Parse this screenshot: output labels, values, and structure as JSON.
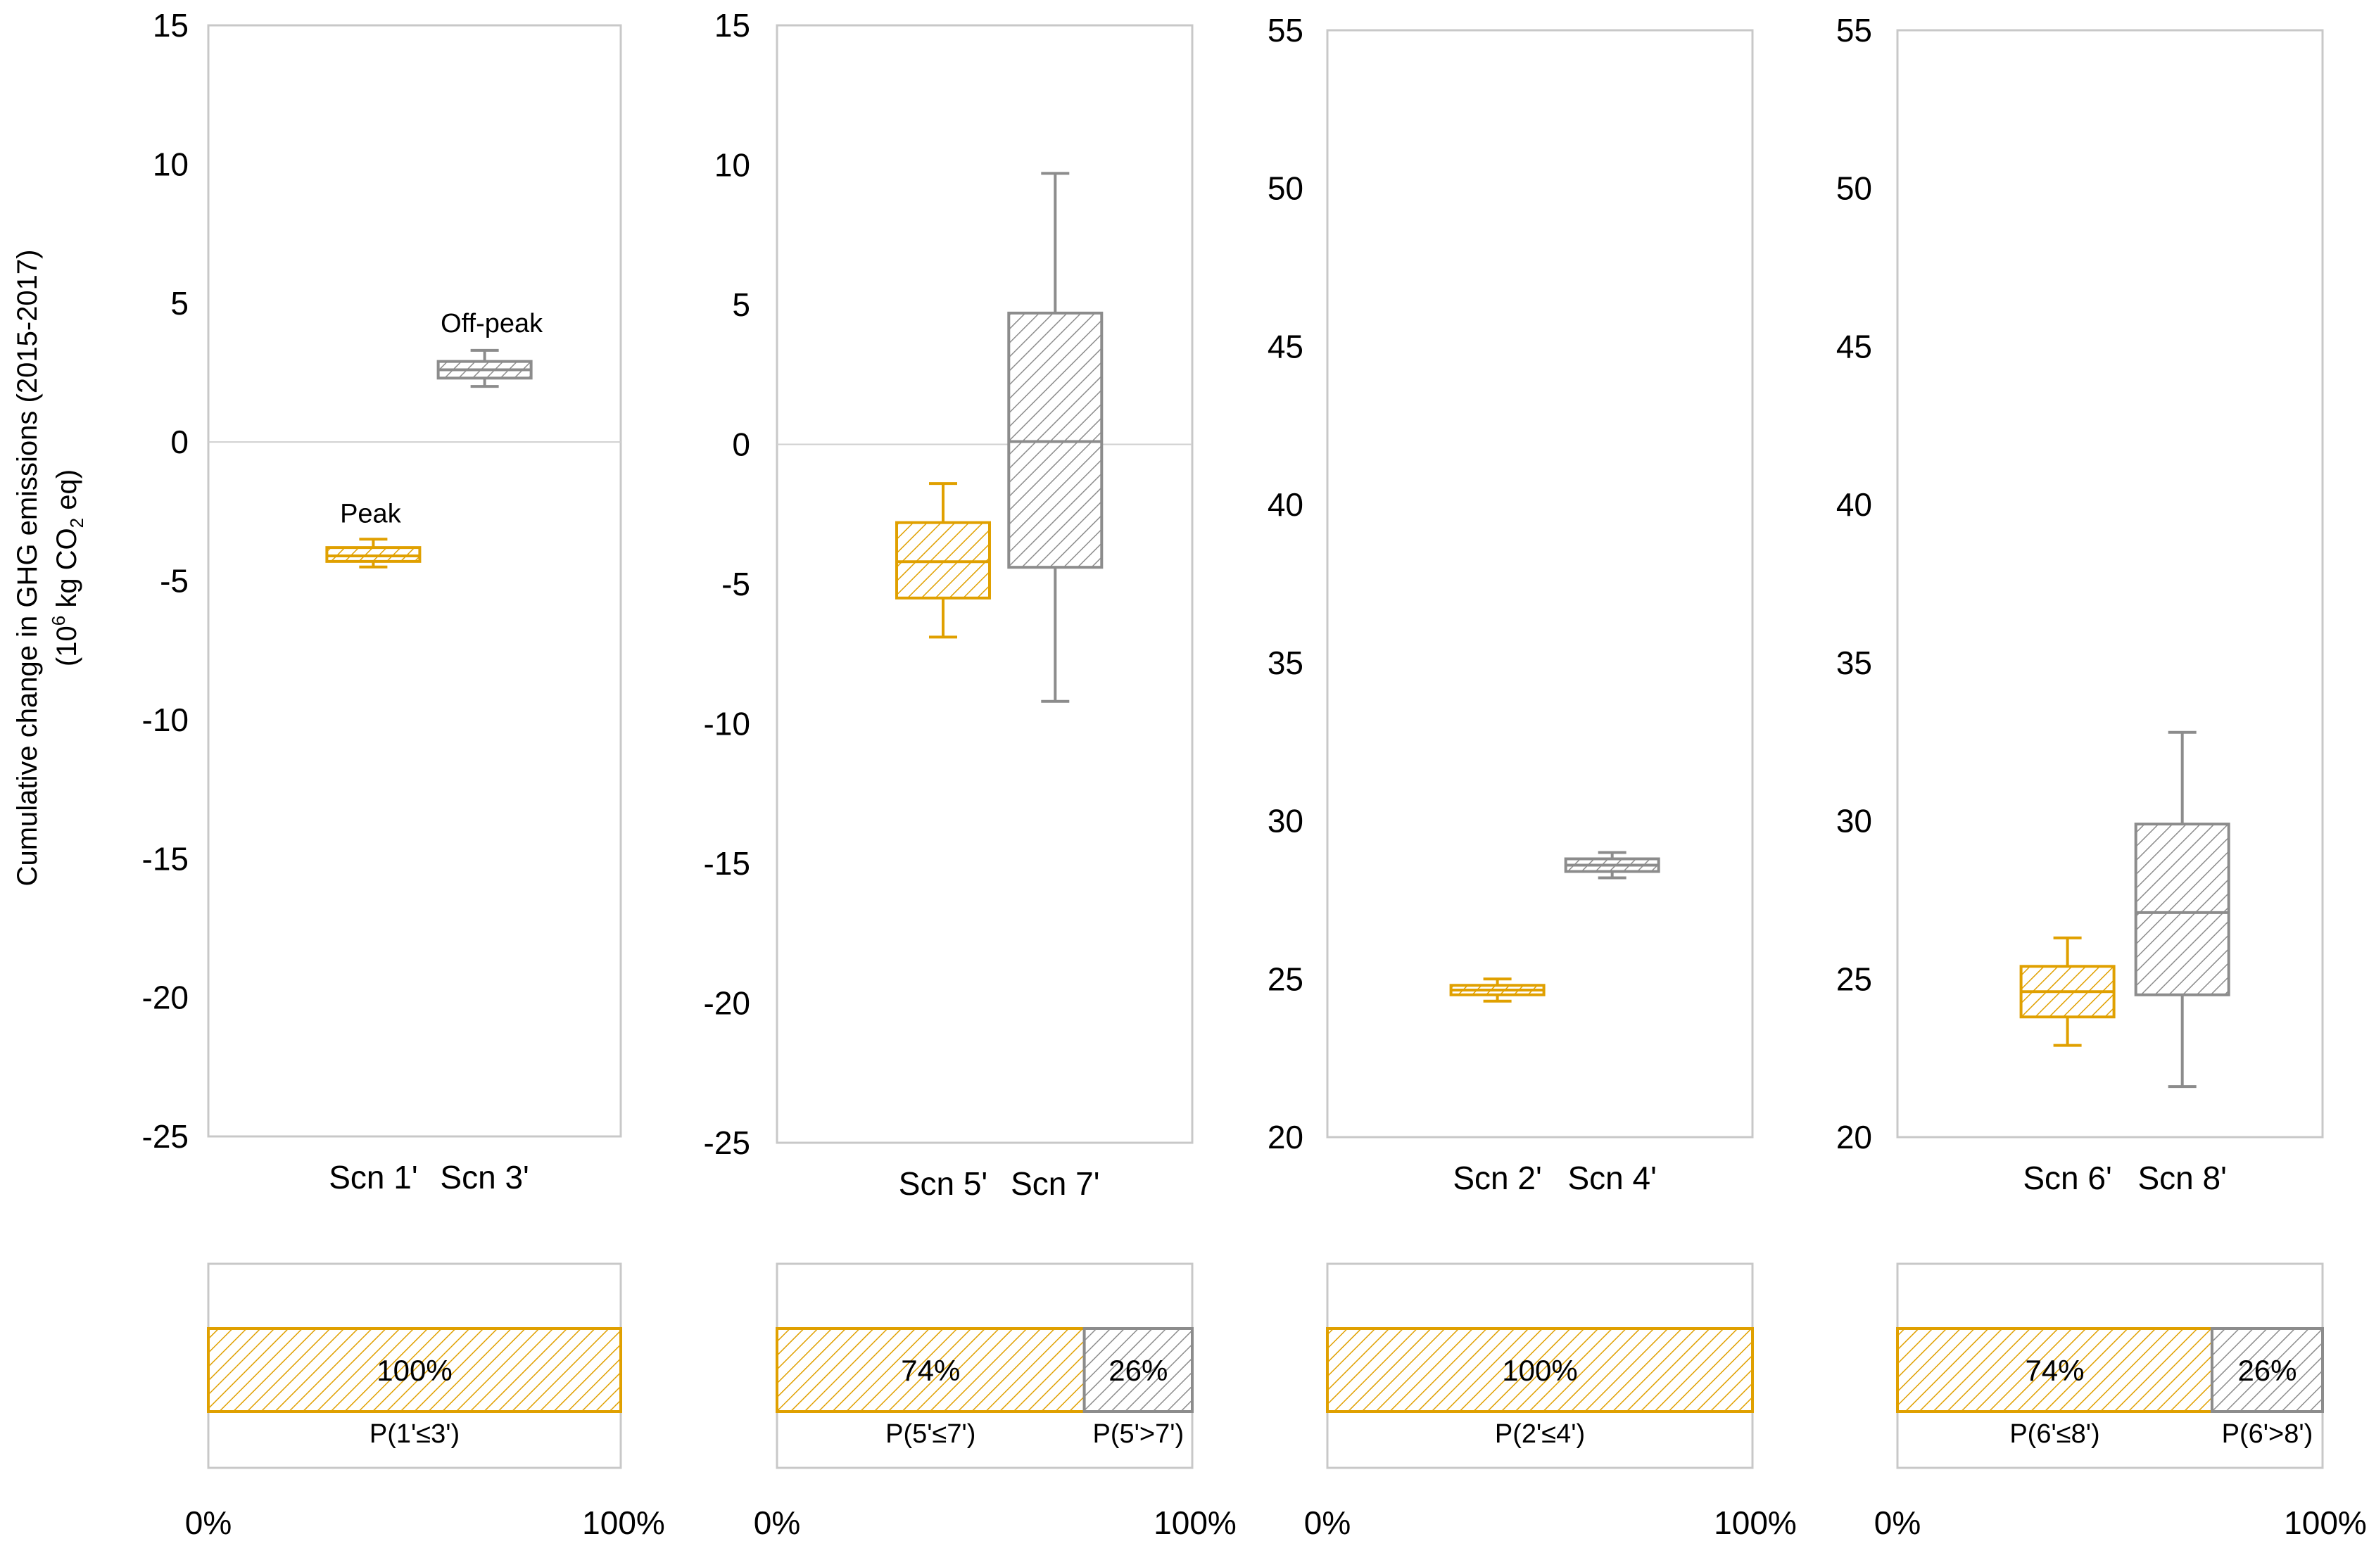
{
  "colors": {
    "peak": "#E0A000",
    "off_peak": "#8C8C8C",
    "frame": "#C8C8C8",
    "zero_line": "#D0D0D0"
  },
  "y_axis_label": {
    "line1": "Cumulative change in GHG emissions (2015-2017)",
    "line2_prefix": "(10",
    "line2_exp": "6",
    "line2_mid": " kg CO",
    "line2_sub": "2",
    "line2_suffix": " eq)"
  },
  "x_axis_ticks": [
    "0%",
    "100%"
  ],
  "chart_data": [
    {
      "type": "box",
      "ylim": [
        -25,
        15
      ],
      "yticks": [
        "15",
        "10",
        "5",
        "0",
        "-5",
        "-10",
        "-15",
        "-20",
        "-25"
      ],
      "zero_line": true,
      "categories": [
        "Scn 1'",
        "Scn 3'"
      ],
      "annotations": [
        "Peak",
        "Off-peak"
      ],
      "boxes": [
        {
          "name": "Scn 1'",
          "series": "peak",
          "whisker_low": -4.5,
          "q1": -4.3,
          "median": -4.1,
          "q3": -3.8,
          "whisker_high": -3.5
        },
        {
          "name": "Scn 3'",
          "series": "off_peak",
          "whisker_low": 2.0,
          "q1": 2.3,
          "median": 2.6,
          "q3": 2.9,
          "whisker_high": 3.3
        }
      ],
      "probability_bar": {
        "segments": [
          {
            "series": "peak",
            "value": 100,
            "label": "100%",
            "caption": "P(1'≤3')"
          }
        ]
      }
    },
    {
      "type": "box",
      "ylim": [
        -25,
        15
      ],
      "yticks": [
        "15",
        "10",
        "5",
        "0",
        "-5",
        "-10",
        "-15",
        "-20",
        "-25"
      ],
      "zero_line": true,
      "categories": [
        "Scn 5'",
        "Scn 7'"
      ],
      "annotations": [],
      "boxes": [
        {
          "name": "Scn 5'",
          "series": "peak",
          "whisker_low": -6.9,
          "q1": -5.5,
          "median": -4.2,
          "q3": -2.8,
          "whisker_high": -1.4
        },
        {
          "name": "Scn 7'",
          "series": "off_peak",
          "whisker_low": -9.2,
          "q1": -4.4,
          "median": 0.1,
          "q3": 4.7,
          "whisker_high": 9.7
        }
      ],
      "probability_bar": {
        "segments": [
          {
            "series": "peak",
            "value": 74,
            "label": "74%",
            "caption": "P(5'≤7')"
          },
          {
            "series": "off_peak",
            "value": 26,
            "label": "26%",
            "caption": "P(5'>7')"
          }
        ]
      }
    },
    {
      "type": "box",
      "ylim": [
        20,
        55
      ],
      "yticks": [
        "55",
        "50",
        "45",
        "40",
        "35",
        "30",
        "25",
        "20"
      ],
      "zero_line": false,
      "categories": [
        "Scn 2'",
        "Scn 4'"
      ],
      "annotations": [],
      "boxes": [
        {
          "name": "Scn 2'",
          "series": "peak",
          "whisker_low": 24.3,
          "q1": 24.5,
          "median": 24.65,
          "q3": 24.8,
          "whisker_high": 25.0
        },
        {
          "name": "Scn 4'",
          "series": "off_peak",
          "whisker_low": 28.2,
          "q1": 28.4,
          "median": 28.6,
          "q3": 28.8,
          "whisker_high": 29.0
        }
      ],
      "probability_bar": {
        "segments": [
          {
            "series": "peak",
            "value": 100,
            "label": "100%",
            "caption": "P(2'≤4')"
          }
        ]
      }
    },
    {
      "type": "box",
      "ylim": [
        20,
        55
      ],
      "yticks": [
        "55",
        "50",
        "45",
        "40",
        "35",
        "30",
        "25",
        "20"
      ],
      "zero_line": false,
      "categories": [
        "Scn 6'",
        "Scn 8'"
      ],
      "annotations": [],
      "boxes": [
        {
          "name": "Scn 6'",
          "series": "peak",
          "whisker_low": 22.9,
          "q1": 23.8,
          "median": 24.6,
          "q3": 25.4,
          "whisker_high": 26.3
        },
        {
          "name": "Scn 8'",
          "series": "off_peak",
          "whisker_low": 21.6,
          "q1": 24.5,
          "median": 27.1,
          "q3": 29.9,
          "whisker_high": 32.8
        }
      ],
      "probability_bar": {
        "segments": [
          {
            "series": "peak",
            "value": 74,
            "label": "74%",
            "caption": "P(6'≤8')"
          },
          {
            "series": "off_peak",
            "value": 26,
            "label": "26%",
            "caption": "P(6'>8')"
          }
        ]
      }
    }
  ]
}
